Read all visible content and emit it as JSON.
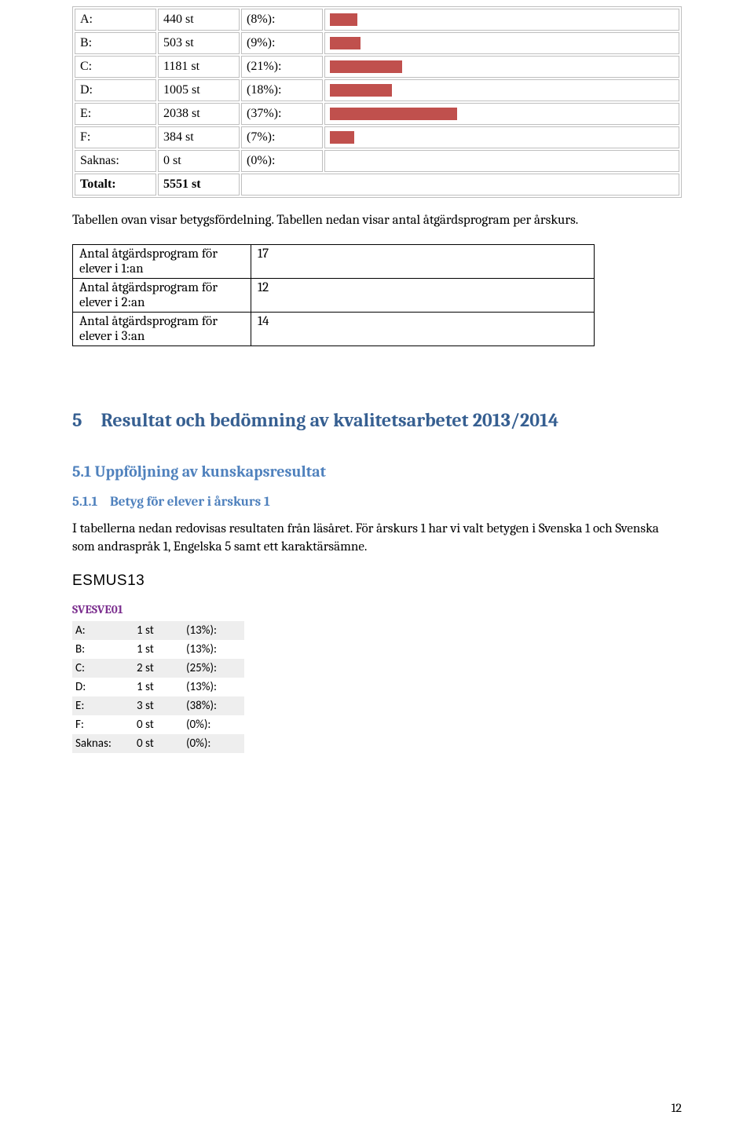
{
  "colors": {
    "bar_fill": "#c0504d",
    "table_border": "#bfbfbf",
    "h1": "#365f91",
    "h2": "#4f81bd",
    "subject": "#7b2e8e",
    "stripe": "#eeeeee"
  },
  "grade_table": {
    "rows": [
      {
        "label": "A:",
        "count": "440 st",
        "pct": "(8%):",
        "bar_pct": 8
      },
      {
        "label": "B:",
        "count": "503 st",
        "pct": "(9%):",
        "bar_pct": 9
      },
      {
        "label": "C:",
        "count": "1181 st",
        "pct": "(21%):",
        "bar_pct": 21
      },
      {
        "label": "D:",
        "count": "1005 st",
        "pct": "(18%):",
        "bar_pct": 18
      },
      {
        "label": "E:",
        "count": "2038 st",
        "pct": "(37%):",
        "bar_pct": 37
      },
      {
        "label": "F:",
        "count": "384 st",
        "pct": "(7%):",
        "bar_pct": 7
      },
      {
        "label": "Saknas:",
        "count": "0 st",
        "pct": "(0%):",
        "bar_pct": 0
      }
    ],
    "total_label": "Totalt:",
    "total_value": "5551 st"
  },
  "paragraph1": "Tabellen ovan visar betygsfördelning. Tabellen nedan visar antal åtgärdsprogram per årskurs.",
  "atgard_table": {
    "rows": [
      {
        "label": "Antal åtgärdsprogram för elever i 1:an",
        "value": "17"
      },
      {
        "label": "Antal åtgärdsprogram för elever i 2:an",
        "value": "12"
      },
      {
        "label": "Antal åtgärdsprogram för elever i 3:an",
        "value": "14"
      }
    ]
  },
  "heading_5": "5 Resultat och bedömning av kvalitetsarbetet 2013/2014",
  "heading_5_1": "5.1 Uppföljning av kunskapsresultat",
  "heading_5_1_1_num": "5.1.1",
  "heading_5_1_1_text": "Betyg för elever i årskurs 1",
  "paragraph2": "I tabellerna nedan redovisas resultaten från läsåret. För årskurs 1 har vi valt betygen i Svenska 1 och Svenska som andraspråk 1, Engelska 5 samt ett karaktärsämne.",
  "course_code": "ESMUS13",
  "subject_code": "SVESVE01",
  "small_grade_table": {
    "rows": [
      {
        "label": "A:",
        "count": "1 st",
        "pct": "(13%):"
      },
      {
        "label": "B:",
        "count": "1 st",
        "pct": "(13%):"
      },
      {
        "label": "C:",
        "count": "2 st",
        "pct": "(25%):"
      },
      {
        "label": "D:",
        "count": "1 st",
        "pct": "(13%):"
      },
      {
        "label": "E:",
        "count": "3 st",
        "pct": "(38%):"
      },
      {
        "label": "F:",
        "count": "0 st",
        "pct": "(0%):"
      },
      {
        "label": "Saknas:",
        "count": "0 st",
        "pct": "(0%):"
      }
    ]
  },
  "page_number": "12"
}
